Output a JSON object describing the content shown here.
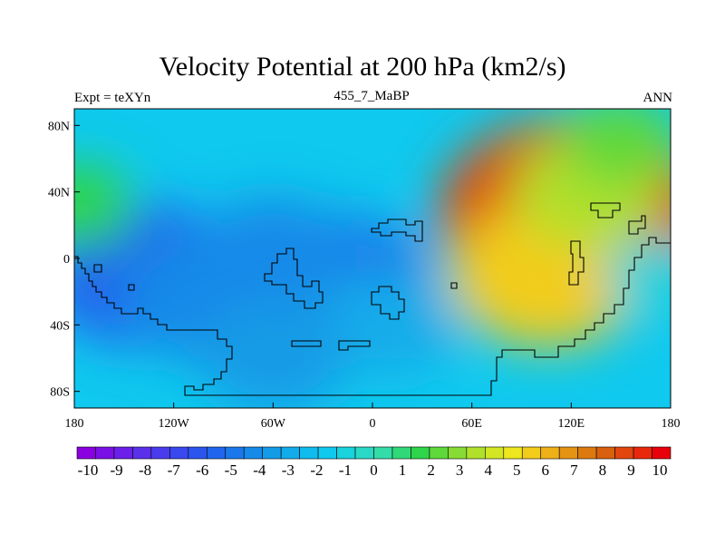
{
  "chart_data": {
    "type": "heatmap",
    "title": "Velocity Potential at 200 hPa (km2/s)",
    "subtitle_left": "Expt = teXYn",
    "subtitle_center": "455_7_MaBP",
    "subtitle_right": "ANN",
    "x_ticks": [
      "180",
      "120W",
      "60W",
      "0",
      "60E",
      "120E",
      "180"
    ],
    "x_tick_values": [
      -180,
      -120,
      -60,
      0,
      60,
      120,
      180
    ],
    "y_ticks": [
      "80N",
      "40N",
      "0",
      "40S",
      "80S"
    ],
    "y_tick_values": [
      80,
      40,
      0,
      -40,
      -80
    ],
    "xlim": [
      -180,
      180
    ],
    "ylim": [
      -90,
      90
    ],
    "colorbar": {
      "labels": [
        "-10",
        "-9",
        "-8",
        "-7",
        "-6",
        "-5",
        "-4",
        "-3",
        "-2",
        "-1",
        "0",
        "1",
        "2",
        "3",
        "4",
        "5",
        "6",
        "7",
        "8",
        "9",
        "10"
      ],
      "min": -10.5,
      "max": 10.5,
      "colors": [
        "#8a00e0",
        "#7a10e6",
        "#6b1fe8",
        "#5a30ea",
        "#4a3ced",
        "#3a48ef",
        "#2c55ee",
        "#2066ec",
        "#1a78ea",
        "#168ae8",
        "#149be6",
        "#12acea",
        "#10bcee",
        "#0fc9ee",
        "#18d2dc",
        "#2ad8c6",
        "#34dca8",
        "#30d878",
        "#2ed44a",
        "#5ed83a",
        "#86dc34",
        "#b0e02c",
        "#d2e624",
        "#eee61e",
        "#f2cc1a",
        "#eeb018",
        "#e49412",
        "#dc7a10",
        "#d8600e",
        "#e0460e",
        "#e8280c",
        "#e8000a"
      ]
    },
    "centers": [
      {
        "lon": -140,
        "lat": -10,
        "value": -5.6
      },
      {
        "lon": -20,
        "lat": -15,
        "value": -5.2
      },
      {
        "lon": -100,
        "lat": -25,
        "value": -4.5
      },
      {
        "lon": -60,
        "lat": 0,
        "value": -4.2
      },
      {
        "lon": 10,
        "lat": -40,
        "value": -3.0
      },
      {
        "lon": -60,
        "lat": -60,
        "value": -3.5
      },
      {
        "lon": 120,
        "lat": 25,
        "value": 8.8
      },
      {
        "lon": 105,
        "lat": -10,
        "value": 5.5
      },
      {
        "lon": 130,
        "lat": 40,
        "value": 3.5
      },
      {
        "lon": 170,
        "lat": -10,
        "value": -1.2
      },
      {
        "lon": -178,
        "lat": 32,
        "value": 1.8
      },
      {
        "lon": 150,
        "lat": 70,
        "value": 2.0
      }
    ]
  }
}
